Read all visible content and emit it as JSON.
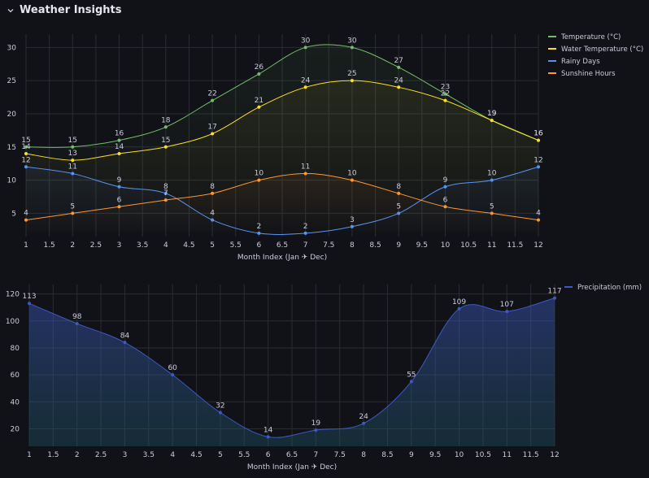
{
  "header": {
    "title": "Weather Insights"
  },
  "chart_data": [
    {
      "type": "line",
      "xlabel": "Month Index (Jan ✈ Dec)",
      "ylabel": "",
      "x": [
        1,
        2,
        3,
        4,
        5,
        6,
        7,
        8,
        9,
        10,
        11,
        12
      ],
      "xticks": [
        "1",
        "1.5",
        "2",
        "2.5",
        "3",
        "3.5",
        "4",
        "4.5",
        "5",
        "5.5",
        "6",
        "6.5",
        "7",
        "7.5",
        "8",
        "8.5",
        "9",
        "9.5",
        "10",
        "10.5",
        "11",
        "11.5",
        "12"
      ],
      "yticks": [
        "5",
        "10",
        "15",
        "20",
        "25",
        "30"
      ],
      "xlim": [
        1,
        12
      ],
      "ylim": [
        1.5,
        32
      ],
      "grid": true,
      "legend_position": "right",
      "series": [
        {
          "name": "Temperature (°C)",
          "color": "#73bf69",
          "values": [
            15,
            15,
            16,
            18,
            22,
            26,
            30,
            30,
            27,
            23,
            19,
            16
          ]
        },
        {
          "name": "Water Temperature (°C)",
          "color": "#fade2a",
          "values": [
            14,
            13,
            14,
            15,
            17,
            21,
            24,
            25,
            24,
            22,
            19,
            16
          ]
        },
        {
          "name": "Rainy Days",
          "color": "#5794f2",
          "values": [
            12,
            11,
            9,
            8,
            4,
            2,
            2,
            3,
            5,
            9,
            10,
            12
          ]
        },
        {
          "name": "Sunshine Hours",
          "color": "#ff9830",
          "values": [
            4,
            5,
            6,
            7,
            8,
            10,
            11,
            10,
            8,
            6,
            5,
            4
          ]
        }
      ]
    },
    {
      "type": "area",
      "xlabel": "Month Index (Jan ✈ Dec)",
      "ylabel": "",
      "x": [
        1,
        2,
        3,
        4,
        5,
        6,
        7,
        8,
        9,
        10,
        11,
        12
      ],
      "xticks": [
        "1",
        "1.5",
        "2",
        "2.5",
        "3",
        "3.5",
        "4",
        "4.5",
        "5",
        "5.5",
        "6",
        "6.5",
        "7",
        "7.5",
        "8",
        "8.5",
        "9",
        "9.5",
        "10",
        "10.5",
        "11",
        "11.5",
        "12"
      ],
      "yticks": [
        "20",
        "40",
        "60",
        "80",
        "100",
        "120"
      ],
      "xlim": [
        1,
        12
      ],
      "ylim": [
        7,
        127
      ],
      "grid": true,
      "legend_position": "right",
      "series": [
        {
          "name": "Precipitation (mm)",
          "color": "#3d59c4",
          "values": [
            113,
            98,
            84,
            60,
            32,
            14,
            19,
            24,
            55,
            109,
            107,
            117
          ]
        }
      ]
    }
  ]
}
